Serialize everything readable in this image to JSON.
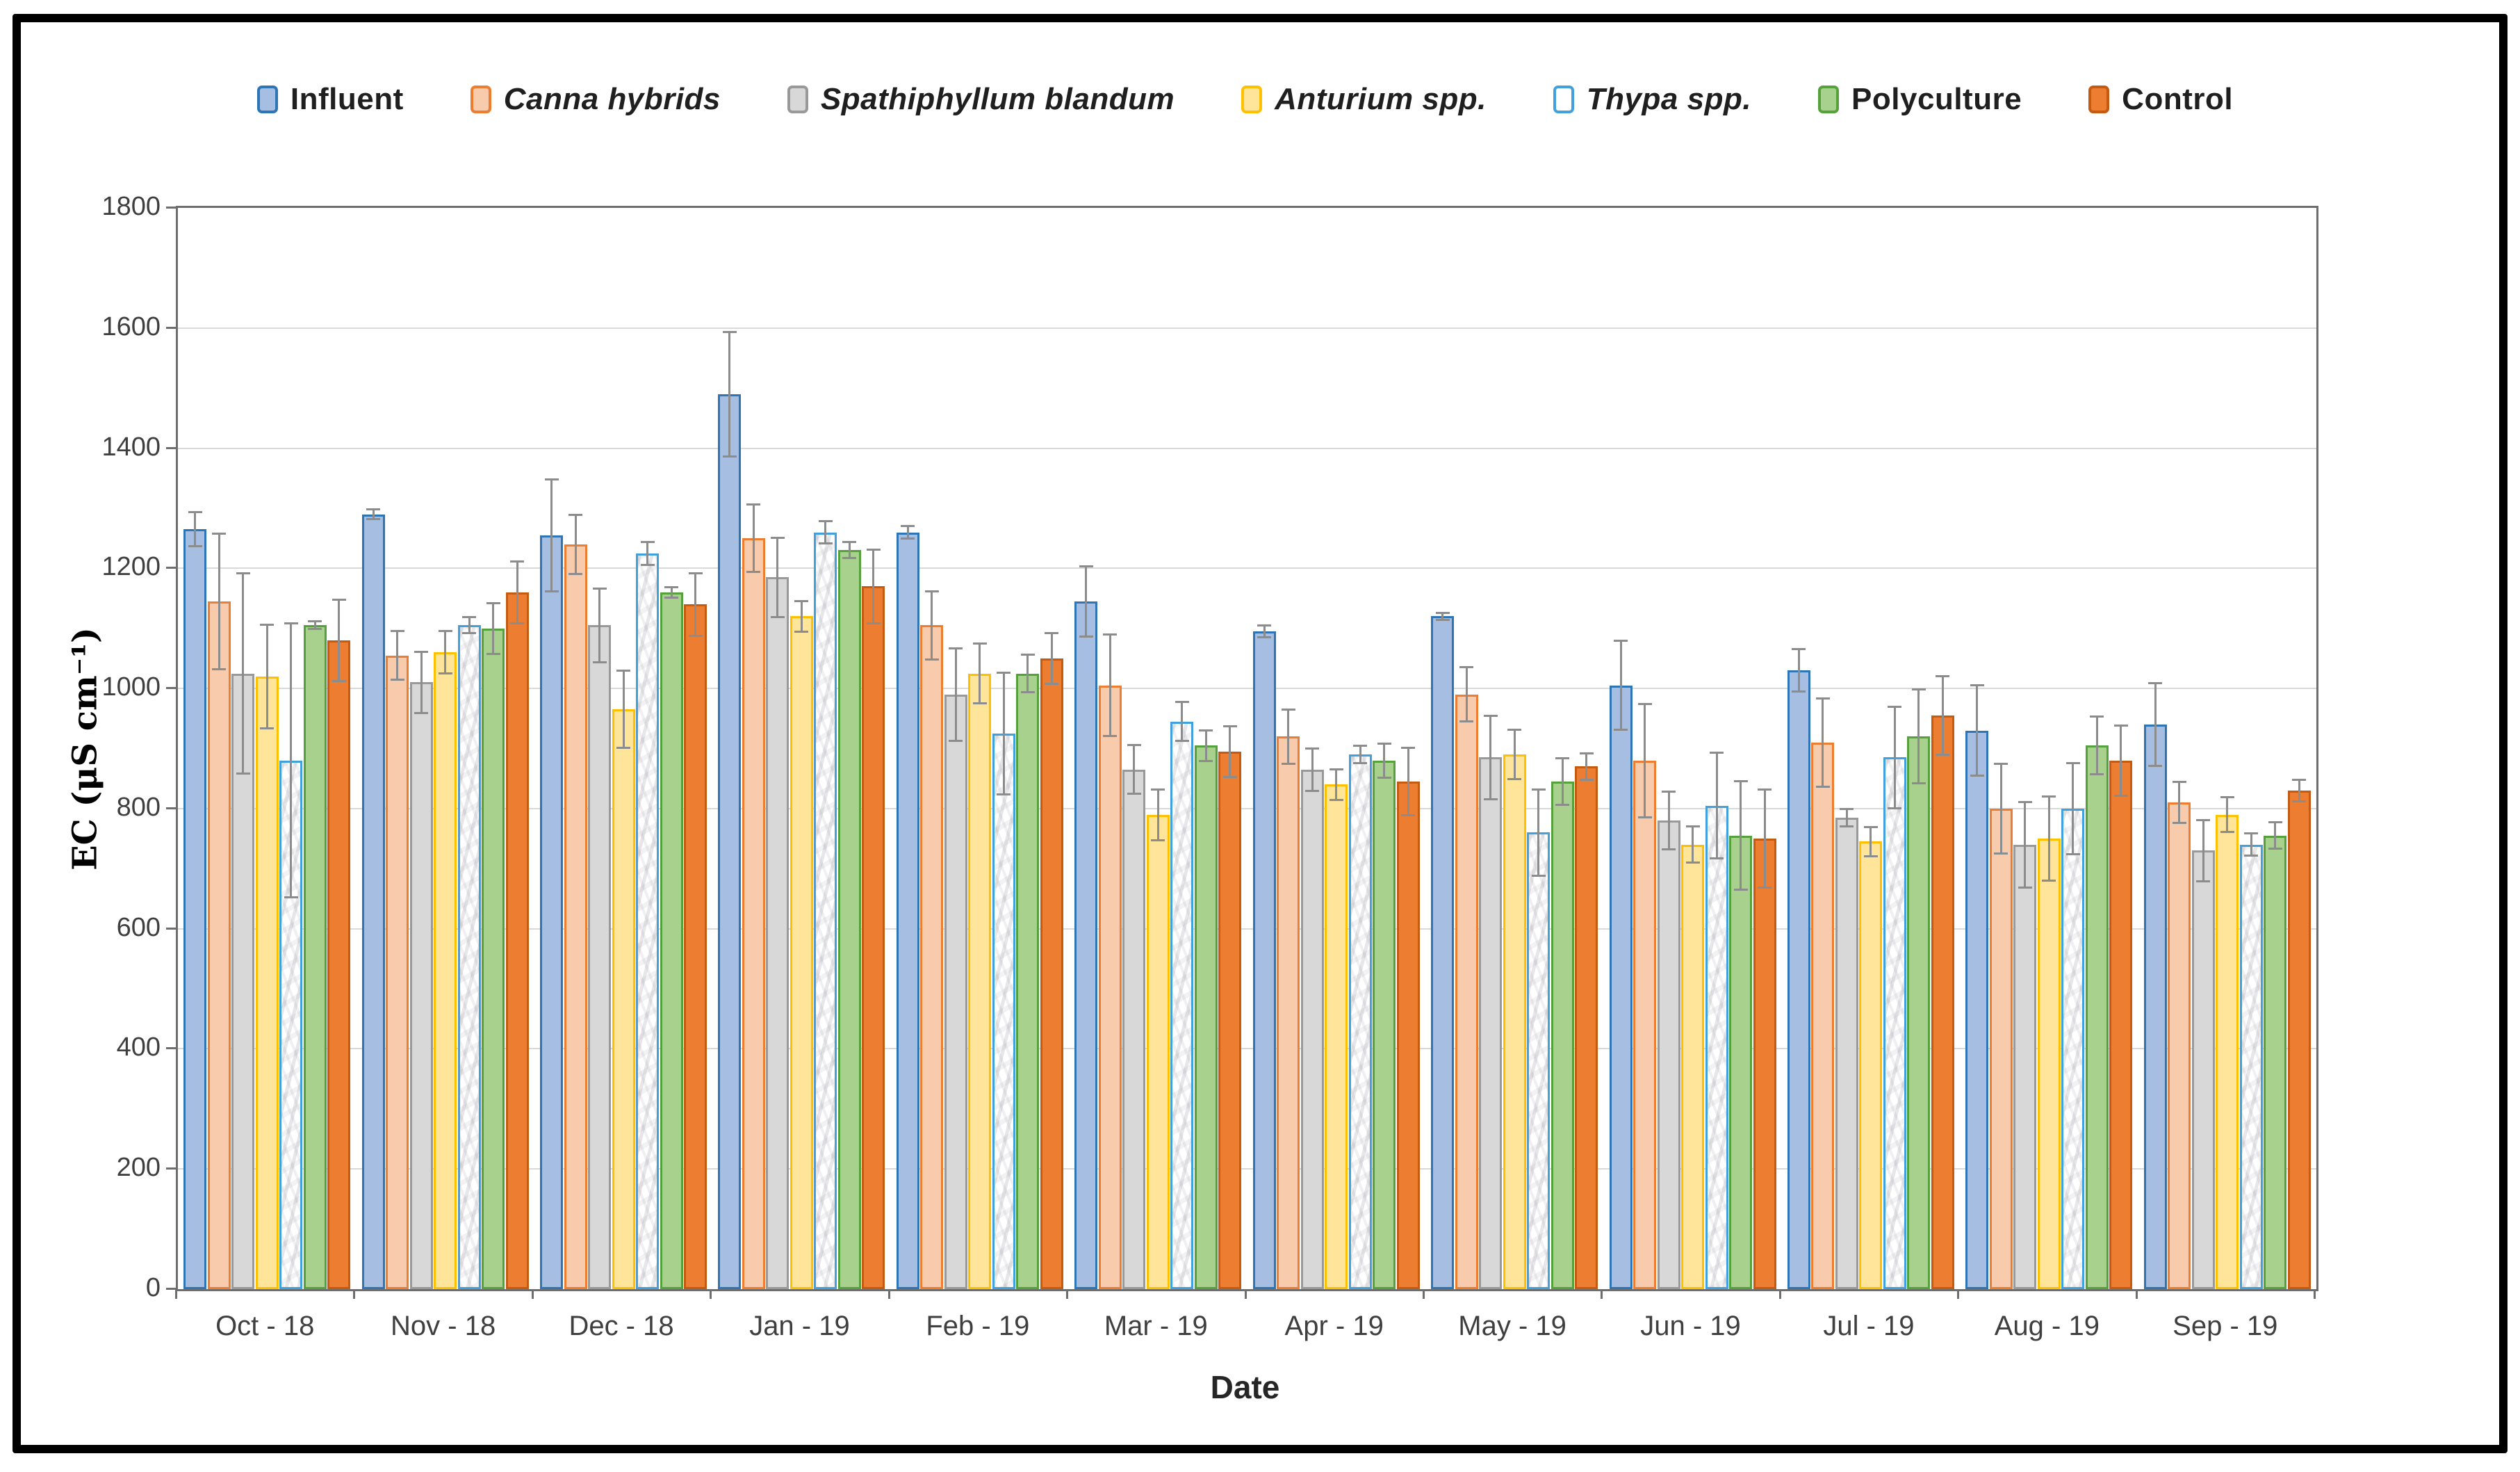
{
  "figure_title": "",
  "colors": {
    "grid": "#d9d9d9",
    "axis": "#6e6e6e",
    "error_bar": "#8c8c8c",
    "frame": "#000000",
    "tick_text": "#3f3f3f"
  },
  "chart_data": {
    "type": "bar",
    "title": "",
    "xlabel": "Date",
    "ylabel": "EC (μS cm⁻¹)",
    "ylim": [
      0,
      1800
    ],
    "ytick_step": 200,
    "yticks": [
      0,
      200,
      400,
      600,
      800,
      1000,
      1200,
      1400,
      1600,
      1800
    ],
    "grid": true,
    "legend_position": "top",
    "error_bars": true,
    "categories": [
      "Oct - 18",
      "Nov - 18",
      "Dec - 18",
      "Jan - 19",
      "Feb - 19",
      "Mar - 19",
      "Apr - 19",
      "May - 19",
      "Jun - 19",
      "Jul - 19",
      "Aug - 19",
      "Sep - 19"
    ],
    "series": [
      {
        "name": "Influent",
        "italic": false,
        "fill": "#A7BEE3",
        "border": "#2E75B6",
        "pattern": "none",
        "values": [
          1265,
          1290,
          1255,
          1490,
          1260,
          1145,
          1095,
          1120,
          1005,
          1030,
          930,
          940
        ],
        "errors": [
          30,
          10,
          95,
          105,
          12,
          60,
          12,
          8,
          76,
          37,
          77,
          71
        ]
      },
      {
        "name": "Canna hybrids",
        "italic": true,
        "fill": "#F8CBAD",
        "border": "#ED7D31",
        "pattern": "none",
        "values": [
          1145,
          1055,
          1240,
          1250,
          1105,
          1005,
          920,
          990,
          880,
          910,
          800,
          810
        ],
        "errors": [
          115,
          42,
          51,
          58,
          58,
          86,
          47,
          47,
          96,
          75,
          76,
          36
        ]
      },
      {
        "name": "Spathiphyllum blandum",
        "italic": true,
        "fill": "#D8D8D8",
        "border": "#999999",
        "pattern": "none",
        "values": [
          1025,
          1010,
          1105,
          1185,
          990,
          865,
          865,
          885,
          780,
          785,
          740,
          730
        ],
        "errors": [
          168,
          53,
          63,
          68,
          79,
          42,
          37,
          71,
          50,
          16,
          73,
          53
        ]
      },
      {
        "name": "Anturium spp.",
        "italic": true,
        "fill": "#FFE599",
        "border": "#FFC000",
        "pattern": "none",
        "values": [
          1020,
          1060,
          965,
          1120,
          1025,
          790,
          840,
          890,
          740,
          745,
          750,
          790
        ],
        "errors": [
          88,
          37,
          66,
          27,
          51,
          44,
          27,
          43,
          32,
          26,
          72,
          31
        ]
      },
      {
        "name": "Thypa spp.",
        "italic": true,
        "fill": "#FFFFFF",
        "border": "#41A1DC",
        "pattern": "marble",
        "values": [
          880,
          1105,
          1225,
          1260,
          925,
          945,
          890,
          760,
          805,
          885,
          800,
          740
        ],
        "errors": [
          230,
          15,
          21,
          20,
          103,
          34,
          16,
          74,
          90,
          86,
          78,
          20
        ]
      },
      {
        "name": "Polyculture",
        "italic": false,
        "fill": "#A9D18E",
        "border": "#55A13C",
        "pattern": "none",
        "values": [
          1105,
          1100,
          1160,
          1230,
          1025,
          905,
          880,
          845,
          755,
          920,
          905,
          755
        ],
        "errors": [
          8,
          44,
          10,
          15,
          33,
          27,
          30,
          41,
          92,
          80,
          50,
          24
        ]
      },
      {
        "name": "Control",
        "italic": false,
        "fill": "#ED7D31",
        "border": "#C55A11",
        "pattern": "none",
        "values": [
          1080,
          1160,
          1140,
          1170,
          1050,
          895,
          845,
          870,
          750,
          955,
          880,
          830
        ],
        "errors": [
          69,
          53,
          54,
          63,
          44,
          44,
          58,
          24,
          83,
          67,
          60,
          20
        ]
      }
    ]
  }
}
